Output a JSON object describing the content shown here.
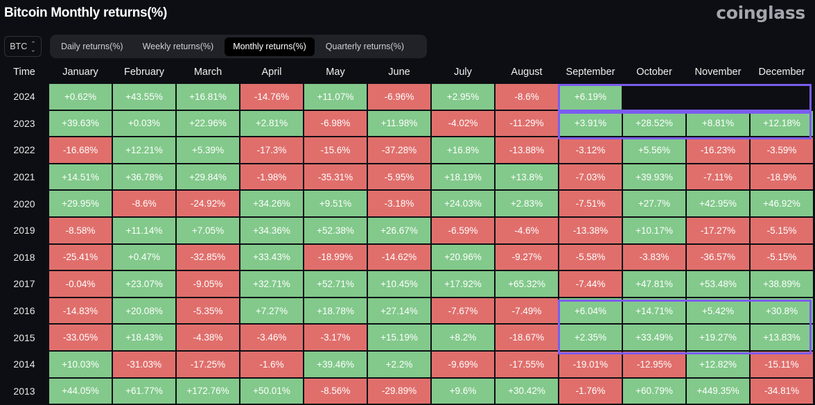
{
  "title": "Bitcoin Monthly returns(%)",
  "logo": "coinglass",
  "asset_select": {
    "value": "BTC",
    "icon": "updown-chevron-icon"
  },
  "tabs": [
    {
      "label": "Daily returns(%)",
      "active": false
    },
    {
      "label": "Weekly returns(%)",
      "active": false
    },
    {
      "label": "Monthly returns(%)",
      "active": true
    },
    {
      "label": "Quarterly returns(%)",
      "active": false
    }
  ],
  "colors": {
    "positive": "#82c98b",
    "negative": "#e06f6c",
    "highlight": "#7b5cf0"
  },
  "table": {
    "headers": [
      "Time",
      "January",
      "February",
      "March",
      "April",
      "May",
      "June",
      "July",
      "August",
      "September",
      "October",
      "November",
      "December"
    ],
    "rows": [
      {
        "year": "2024",
        "values": [
          "+0.62%",
          "+43.55%",
          "+16.81%",
          "-14.76%",
          "+11.07%",
          "-6.96%",
          "+2.95%",
          "-8.6%",
          "+6.19%",
          null,
          null,
          null
        ]
      },
      {
        "year": "2023",
        "values": [
          "+39.63%",
          "+0.03%",
          "+22.96%",
          "+2.81%",
          "-6.98%",
          "+11.98%",
          "-4.02%",
          "-11.29%",
          "+3.91%",
          "+28.52%",
          "+8.81%",
          "+12.18%"
        ]
      },
      {
        "year": "2022",
        "values": [
          "-16.68%",
          "+12.21%",
          "+5.39%",
          "-17.3%",
          "-15.6%",
          "-37.28%",
          "+16.8%",
          "-13.88%",
          "-3.12%",
          "+5.56%",
          "-16.23%",
          "-3.59%"
        ]
      },
      {
        "year": "2021",
        "values": [
          "+14.51%",
          "+36.78%",
          "+29.84%",
          "-1.98%",
          "-35.31%",
          "-5.95%",
          "+18.19%",
          "+13.8%",
          "-7.03%",
          "+39.93%",
          "-7.11%",
          "-18.9%"
        ]
      },
      {
        "year": "2020",
        "values": [
          "+29.95%",
          "-8.6%",
          "-24.92%",
          "+34.26%",
          "+9.51%",
          "-3.18%",
          "+24.03%",
          "+2.83%",
          "-7.51%",
          "+27.7%",
          "+42.95%",
          "+46.92%"
        ]
      },
      {
        "year": "2019",
        "values": [
          "-8.58%",
          "+11.14%",
          "+7.05%",
          "+34.36%",
          "+52.38%",
          "+26.67%",
          "-6.59%",
          "-4.6%",
          "-13.38%",
          "+10.17%",
          "-17.27%",
          "-5.15%"
        ]
      },
      {
        "year": "2018",
        "values": [
          "-25.41%",
          "+0.47%",
          "-32.85%",
          "+33.43%",
          "-18.99%",
          "-14.62%",
          "+20.96%",
          "-9.27%",
          "-5.58%",
          "-3.83%",
          "-36.57%",
          "-5.15%"
        ]
      },
      {
        "year": "2017",
        "values": [
          "-0.04%",
          "+23.07%",
          "-9.05%",
          "+32.71%",
          "+52.71%",
          "+10.45%",
          "+17.92%",
          "+65.32%",
          "-7.44%",
          "+47.81%",
          "+53.48%",
          "+38.89%"
        ]
      },
      {
        "year": "2016",
        "values": [
          "-14.83%",
          "+20.08%",
          "-5.35%",
          "+7.27%",
          "+18.78%",
          "+27.14%",
          "-7.67%",
          "-7.49%",
          "+6.04%",
          "+14.71%",
          "+5.42%",
          "+30.8%"
        ]
      },
      {
        "year": "2015",
        "values": [
          "-33.05%",
          "+18.43%",
          "-4.38%",
          "-3.46%",
          "-3.17%",
          "+15.19%",
          "+8.2%",
          "-18.67%",
          "+2.35%",
          "+33.49%",
          "+19.27%",
          "+13.83%"
        ]
      },
      {
        "year": "2014",
        "values": [
          "+10.03%",
          "-31.03%",
          "-17.25%",
          "-1.6%",
          "+39.46%",
          "+2.2%",
          "-9.69%",
          "-17.55%",
          "-19.01%",
          "-12.95%",
          "+12.82%",
          "-15.11%"
        ]
      },
      {
        "year": "2013",
        "values": [
          "+44.05%",
          "+61.77%",
          "+172.76%",
          "+50.01%",
          "-8.56%",
          "-29.89%",
          "+9.6%",
          "+30.42%",
          "-1.76%",
          "+60.79%",
          "+449.35%",
          "-34.81%"
        ]
      }
    ]
  }
}
